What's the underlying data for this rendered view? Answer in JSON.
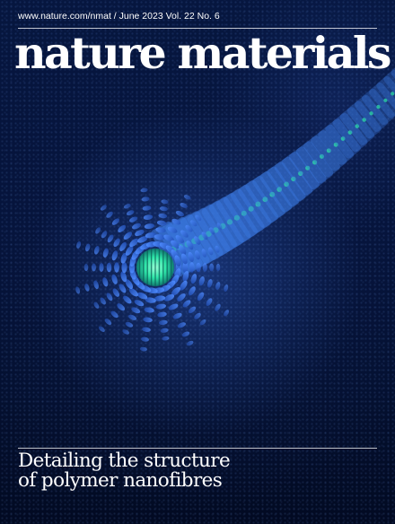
{
  "cover": {
    "url_line": "www.nature.com/nmat / June 2023 Vol. 22 No. 6",
    "masthead": "nature materials",
    "headline_line1": "Detailing the structure",
    "headline_line2": "of polymer nanofibres"
  },
  "colors": {
    "background": "#05133a",
    "fibre_blue": "#3a78e0",
    "fibre_core": "#2ee6a8",
    "text": "#ffffff"
  }
}
